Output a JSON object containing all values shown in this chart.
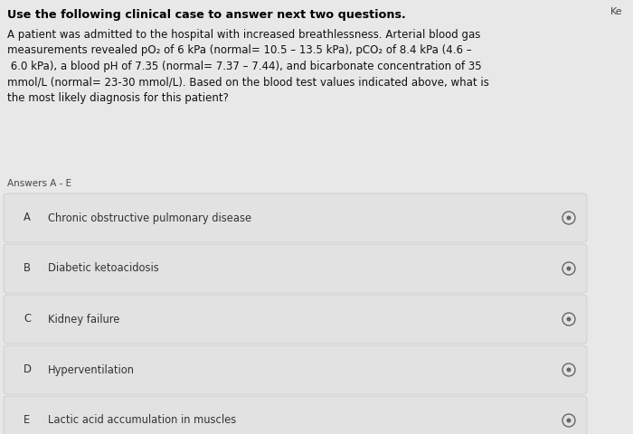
{
  "title": "Use the following clinical case to answer next two questions.",
  "body_text": "A patient was admitted to the hospital with increased breathlessness. Arterial blood gas\nmeasurements revealed pO₂ of 6 kPa (normal= 10.5 – 13.5 kPa), pCO₂ of 8.4 kPa (4.6 –\n 6.0 kPa), a blood pH of 7.35 (normal= 7.37 – 7.44), and bicarbonate concentration of 35\nmmol/L (normal= 23-30 mmol/L). Based on the blood test values indicated above, what is\nthe most likely diagnosis for this patient?",
  "answers_label": "Answers A - E",
  "answers": [
    {
      "letter": "A",
      "text": "Chronic obstructive pulmonary disease"
    },
    {
      "letter": "B",
      "text": "Diabetic ketoacidosis"
    },
    {
      "letter": "C",
      "text": "Kidney failure"
    },
    {
      "letter": "D",
      "text": "Hyperventilation"
    },
    {
      "letter": "E",
      "text": "Lactic acid accumulation in muscles"
    }
  ],
  "bg_color": "#e8e8e8",
  "answer_box_color": "#e2e2e2",
  "answer_box_edge_color": "#cccccc",
  "title_color": "#000000",
  "body_color": "#111111",
  "answer_text_color": "#333333",
  "answers_label_color": "#444444",
  "radio_color": "#666666",
  "corner_label": "Ke",
  "corner_label_color": "#444444",
  "title_fontsize": 9.2,
  "body_fontsize": 8.5,
  "answer_fontsize": 8.3,
  "label_fontsize": 7.5
}
